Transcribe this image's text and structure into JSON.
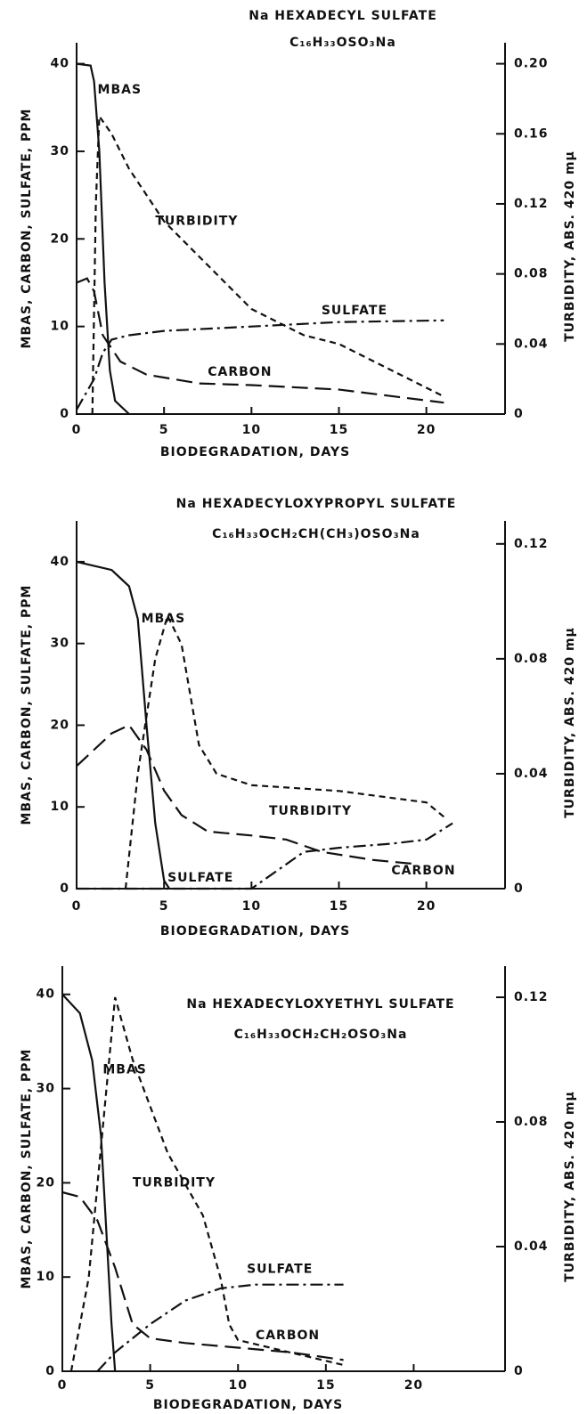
{
  "chart_data": [
    {
      "type": "line",
      "title": "Na HEXADECYL SULFATE",
      "subtitle": "C₁₆H₃₃OSO₃Na",
      "xlabel": "BIODEGRADATION, DAYS",
      "ylabel": "MBAS, CARBON, SULFATE, PPM",
      "y2label": "TURBIDITY, ABS. 420 mμ",
      "xlim": [
        0,
        24.5
      ],
      "xticks": [
        0,
        5,
        10,
        15,
        20
      ],
      "ylim": [
        0,
        42.4
      ],
      "yticks": [
        0,
        10,
        20,
        30,
        40
      ],
      "y2lim": [
        0,
        0.212
      ],
      "y2ticks": [
        0,
        0.04,
        0.08,
        0.12,
        0.16,
        {
          "value": 0.2,
          "label": "0.20"
        }
      ],
      "series": [
        {
          "name": "MBAS",
          "color": "#111",
          "linestyle": "solid",
          "x": [
            0,
            0.8,
            1,
            1.3,
            1.6,
            1.9,
            2.2,
            3
          ],
          "values": [
            40,
            39.8,
            38,
            30,
            15,
            5,
            1.5,
            0
          ]
        },
        {
          "name": "TURBIDITY",
          "color": "#111",
          "linestyle": "dashed",
          "axis": "y2",
          "x": [
            0.9,
            1.1,
            1.3,
            2,
            3,
            5,
            7,
            10,
            13,
            15,
            18,
            21
          ],
          "values": [
            0,
            0.12,
            0.17,
            0.16,
            0.14,
            0.11,
            0.09,
            0.06,
            0.045,
            0.04,
            0.025,
            0.01
          ]
        },
        {
          "name": "SULFATE",
          "color": "#111",
          "linestyle": "dashdot",
          "x": [
            0,
            1,
            1.5,
            2,
            3,
            5,
            10,
            15,
            21
          ],
          "values": [
            0.5,
            4,
            7,
            8.5,
            9,
            9.5,
            10,
            10.5,
            10.7
          ]
        },
        {
          "name": "CARBON",
          "color": "#111",
          "linestyle": "longdash",
          "x": [
            0,
            0.6,
            1,
            1.5,
            2.5,
            4,
            7,
            10,
            15,
            21
          ],
          "values": [
            15,
            15.5,
            14,
            9,
            6,
            4.5,
            3.5,
            3.3,
            2.8,
            1.3
          ]
        }
      ]
    },
    {
      "type": "line",
      "title": "Na HEXADECYLOXYPROPYL SULFATE",
      "subtitle": "C₁₆H₃₃OCH₂CH(CH₃)OSO₃Na",
      "xlabel": "BIODEGRADATION, DAYS",
      "ylabel": "MBAS, CARBON, SULFATE, PPM",
      "y2label": "TURBIDITY, ABS. 420 mμ",
      "xlim": [
        0,
        24.5
      ],
      "xticks": [
        0,
        5,
        10,
        15,
        20
      ],
      "ylim": [
        0,
        45
      ],
      "yticks": [
        0,
        10,
        20,
        30,
        40
      ],
      "y2lim": [
        0,
        0.128
      ],
      "y2ticks": [
        0,
        0.04,
        0.08,
        0.12
      ],
      "series": [
        {
          "name": "MBAS",
          "color": "#111",
          "linestyle": "solid",
          "x": [
            0,
            2,
            3,
            3.5,
            4,
            4.5,
            5,
            5.3
          ],
          "values": [
            40,
            39,
            37,
            33,
            20,
            8,
            1,
            0
          ]
        },
        {
          "name": "TURBIDITY",
          "color": "#111",
          "linestyle": "dashed",
          "axis": "y2",
          "x": [
            2.8,
            3.5,
            4.5,
            5.2,
            6,
            7,
            8,
            10,
            15,
            20,
            21
          ],
          "values": [
            0,
            0.04,
            0.08,
            0.095,
            0.085,
            0.05,
            0.04,
            0.036,
            0.034,
            0.03,
            0.025
          ]
        },
        {
          "name": "SULFATE",
          "color": "#111",
          "linestyle": "dashdot",
          "x": [
            0,
            5,
            10,
            11,
            13,
            15,
            18,
            20,
            21.5
          ],
          "values": [
            0,
            0,
            0,
            1.5,
            4.5,
            5,
            5.5,
            6,
            8
          ]
        },
        {
          "name": "CARBON",
          "color": "#111",
          "linestyle": "longdash",
          "x": [
            0,
            1,
            2,
            3,
            4,
            5,
            6,
            7.5,
            10,
            12,
            14,
            17,
            19.5
          ],
          "values": [
            15,
            17,
            19,
            20,
            17,
            12,
            9,
            7,
            6.5,
            6,
            4.5,
            3.5,
            3
          ]
        }
      ]
    },
    {
      "type": "line",
      "title": "Na HEXADECYLOXYETHYL SULFATE",
      "subtitle": "C₁₆H₃₃OCH₂CH₂OSO₃Na",
      "xlabel": "BIODEGRADATION, DAYS",
      "ylabel": "MBAS, CARBON, SULFATE, PPM",
      "y2latel": null,
      "y2label": "TURBIDITY, ABS. 420 mμ",
      "xlim": [
        0,
        25.2
      ],
      "xticks": [
        0,
        5,
        10,
        15,
        20
      ],
      "ylim": [
        0,
        43
      ],
      "yticks": [
        0,
        10,
        20,
        30,
        40
      ],
      "y2lim": [
        0,
        0.13
      ],
      "y2ticks": [
        0,
        0.04,
        0.08,
        0.12
      ],
      "series": [
        {
          "name": "MBAS",
          "color": "#111",
          "linestyle": "solid",
          "x": [
            0,
            1,
            1.7,
            2.2,
            2.5,
            2.8,
            3
          ],
          "values": [
            40,
            38,
            33,
            25,
            15,
            5,
            0
          ]
        },
        {
          "name": "TURBIDITY",
          "color": "#111",
          "linestyle": "dashed",
          "axis": "y2",
          "x": [
            0.5,
            1.5,
            2.5,
            3,
            4,
            6,
            8,
            9,
            9.5,
            10,
            16
          ],
          "values": [
            0,
            0.03,
            0.09,
            0.12,
            0.1,
            0.07,
            0.05,
            0.03,
            0.015,
            0.01,
            0.002
          ]
        },
        {
          "name": "SULFATE",
          "color": "#111",
          "linestyle": "dashdot",
          "x": [
            2,
            3,
            5,
            7,
            9,
            11,
            16
          ],
          "values": [
            0,
            2,
            5,
            7.5,
            8.8,
            9.2,
            9.2
          ]
        },
        {
          "name": "CARBON",
          "color": "#111",
          "linestyle": "longdash",
          "x": [
            0,
            1,
            2,
            3,
            4,
            5,
            7,
            10,
            13,
            16
          ],
          "values": [
            19,
            18.5,
            16,
            11,
            5,
            3.5,
            3,
            2.5,
            2,
            1.2
          ]
        }
      ]
    }
  ]
}
